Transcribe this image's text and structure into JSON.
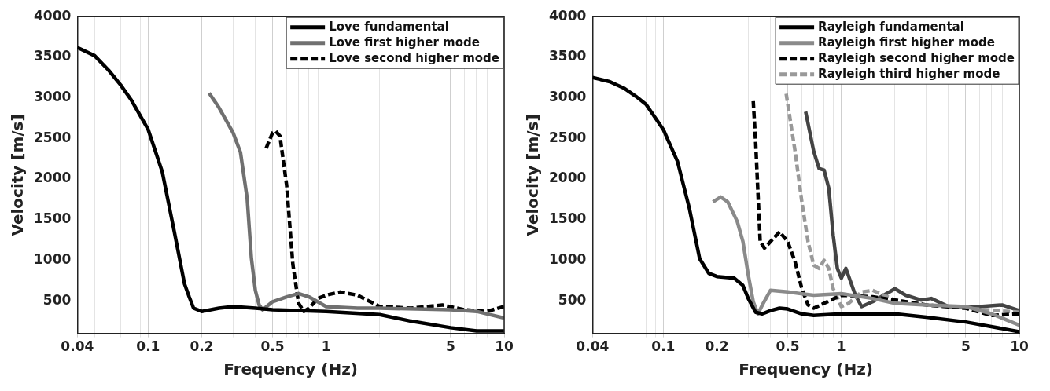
{
  "chart_data": [
    {
      "type": "line",
      "xlabel": "Frequency (Hz)",
      "ylabel": "Velocity [m/s]",
      "log": "x",
      "xlim": [
        0.04,
        10
      ],
      "ylim": [
        100,
        4000
      ],
      "xticks": [
        0.04,
        {
          "value": 0.05,
          "label": null
        },
        {
          "value": 0.06,
          "label": null
        },
        {
          "value": 0.07,
          "label": null
        },
        {
          "value": 0.08,
          "label": null
        },
        {
          "value": 0.09,
          "label": null
        },
        0.1,
        0.2,
        {
          "value": 0.3,
          "label": null
        },
        {
          "value": 0.4,
          "label": null
        },
        0.5,
        {
          "value": 0.6,
          "label": null
        },
        {
          "value": 0.7,
          "label": null
        },
        {
          "value": 0.8,
          "label": null
        },
        {
          "value": 0.9,
          "label": null
        },
        1,
        {
          "value": 2,
          "label": null
        },
        {
          "value": 3,
          "label": null
        },
        {
          "value": 4,
          "label": null
        },
        5,
        {
          "value": 6,
          "label": null
        },
        {
          "value": 7,
          "label": null
        },
        {
          "value": 8,
          "label": null
        },
        {
          "value": 9,
          "label": null
        },
        10
      ],
      "yticks": [
        500,
        1000,
        1500,
        2000,
        2500,
        3000,
        3500,
        4000
      ],
      "grid": "x",
      "legend": "top right",
      "series": [
        {
          "name": "Love fundamental",
          "color": "#000000",
          "line_style": "solid",
          "x": [
            0.04,
            0.05,
            0.06,
            0.07,
            0.08,
            0.1,
            0.12,
            0.14,
            0.16,
            0.17,
            0.18,
            0.2,
            0.25,
            0.3,
            0.4,
            0.5,
            1,
            2,
            3,
            5,
            7,
            10
          ],
          "values": [
            3620,
            3520,
            3340,
            3160,
            2980,
            2610,
            2090,
            1360,
            710,
            550,
            410,
            370,
            410,
            430,
            410,
            390,
            370,
            330,
            250,
            170,
            130,
            130
          ]
        },
        {
          "name": "Love first higher mode",
          "color": "#707070",
          "line_style": "solid",
          "x": [
            0.22,
            0.25,
            0.3,
            0.33,
            0.36,
            0.38,
            0.4,
            0.42,
            0.44,
            0.5,
            0.6,
            0.7,
            0.8,
            1,
            1.5,
            2,
            5,
            7,
            10
          ],
          "values": [
            3060,
            2880,
            2570,
            2330,
            1760,
            1030,
            630,
            450,
            390,
            490,
            550,
            590,
            550,
            430,
            410,
            410,
            390,
            370,
            290
          ]
        },
        {
          "name": "Love second higher mode",
          "color": "#000000",
          "line_style": "dashed",
          "x": [
            0.46,
            0.5,
            0.52,
            0.55,
            0.6,
            0.65,
            0.7,
            0.75,
            0.8,
            0.9,
            1,
            1.2,
            1.5,
            2,
            3,
            4.5,
            6,
            8,
            10
          ],
          "values": [
            2380,
            2570,
            2590,
            2530,
            1920,
            950,
            470,
            370,
            410,
            530,
            570,
            610,
            570,
            430,
            410,
            450,
            390,
            370,
            430
          ]
        }
      ]
    },
    {
      "type": "line",
      "xlabel": "Frequency (Hz)",
      "ylabel": "Velocity [m/s]",
      "log": "x",
      "xlim": [
        0.04,
        10
      ],
      "ylim": [
        100,
        4000
      ],
      "xticks": [
        0.04,
        {
          "value": 0.05,
          "label": null
        },
        {
          "value": 0.06,
          "label": null
        },
        {
          "value": 0.07,
          "label": null
        },
        {
          "value": 0.08,
          "label": null
        },
        {
          "value": 0.09,
          "label": null
        },
        0.1,
        0.2,
        {
          "value": 0.3,
          "label": null
        },
        {
          "value": 0.4,
          "label": null
        },
        0.5,
        {
          "value": 0.6,
          "label": null
        },
        {
          "value": 0.7,
          "label": null
        },
        {
          "value": 0.8,
          "label": null
        },
        {
          "value": 0.9,
          "label": null
        },
        1,
        {
          "value": 2,
          "label": null
        },
        {
          "value": 3,
          "label": null
        },
        {
          "value": 4,
          "label": null
        },
        5,
        {
          "value": 6,
          "label": null
        },
        {
          "value": 7,
          "label": null
        },
        {
          "value": 8,
          "label": null
        },
        {
          "value": 9,
          "label": null
        },
        10
      ],
      "yticks": [
        500,
        1000,
        1500,
        2000,
        2500,
        3000,
        3500,
        4000
      ],
      "grid": "x",
      "legend": "top right",
      "series": [
        {
          "name": "Rayleigh fundamental",
          "color": "#000000",
          "line_style": "solid",
          "x": [
            0.04,
            0.05,
            0.06,
            0.07,
            0.08,
            0.1,
            0.12,
            0.14,
            0.16,
            0.18,
            0.2,
            0.25,
            0.28,
            0.3,
            0.33,
            0.36,
            0.4,
            0.45,
            0.5,
            0.6,
            0.7,
            1,
            2,
            3,
            5,
            10
          ],
          "values": [
            3250,
            3200,
            3120,
            3020,
            2920,
            2610,
            2220,
            1640,
            1020,
            840,
            800,
            780,
            690,
            530,
            360,
            340,
            380,
            410,
            400,
            340,
            320,
            340,
            340,
            300,
            240,
            120
          ]
        },
        {
          "name": "Rayleigh first higher mode",
          "color": "#8a8a8a",
          "line_style": "solid",
          "x": [
            0.19,
            0.21,
            0.23,
            0.26,
            0.28,
            0.3,
            0.32,
            0.34,
            0.36,
            0.4,
            0.5,
            0.7,
            1,
            1.5,
            2,
            3,
            5,
            7,
            10
          ],
          "values": [
            1720,
            1780,
            1720,
            1480,
            1230,
            820,
            490,
            340,
            450,
            630,
            610,
            570,
            590,
            530,
            470,
            450,
            430,
            340,
            200
          ]
        },
        {
          "name": "Rayleigh second higher mode",
          "color": "#000000",
          "line_style": "dashed",
          "x": [
            0.32,
            0.33,
            0.35,
            0.37,
            0.4,
            0.45,
            0.5,
            0.55,
            0.6,
            0.65,
            0.7,
            0.8,
            1,
            1.5,
            2,
            3,
            5,
            7,
            10
          ],
          "values": [
            2960,
            2460,
            1230,
            1150,
            1230,
            1350,
            1230,
            980,
            650,
            450,
            410,
            470,
            570,
            550,
            510,
            450,
            410,
            320,
            340
          ]
        },
        {
          "name": "Rayleigh third higher mode",
          "color": "#999999",
          "line_style": "dashed",
          "x": [
            0.49,
            0.55,
            0.6,
            0.65,
            0.7,
            0.75,
            0.8,
            0.85,
            0.9,
            1,
            1.1,
            1.3,
            1.5,
            2,
            3,
            5,
            10
          ],
          "values": [
            3050,
            2340,
            1720,
            1230,
            940,
            900,
            1000,
            900,
            650,
            430,
            470,
            610,
            630,
            510,
            450,
            410,
            360
          ]
        },
        {
          "color": "#444444",
          "line_style": "solid",
          "x": [
            0.63,
            0.7,
            0.75,
            0.8,
            0.85,
            0.9,
            0.95,
            1,
            1.06,
            1.2,
            1.3,
            1.5,
            2,
            2.3,
            2.8,
            3.2,
            4,
            6,
            8,
            10
          ],
          "values": [
            2830,
            2340,
            2130,
            2110,
            1890,
            1310,
            900,
            780,
            900,
            570,
            430,
            490,
            650,
            570,
            510,
            530,
            430,
            430,
            450,
            380
          ]
        }
      ]
    }
  ]
}
